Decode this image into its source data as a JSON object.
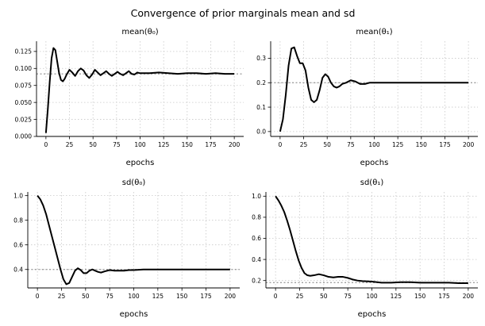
{
  "figure": {
    "title": "Convergence of prior marginals mean and sd"
  },
  "chart_data": [
    {
      "type": "line",
      "title": "mean(θ₀)",
      "xlabel": "epochs",
      "ylabel": "",
      "xlim": [
        -10,
        210
      ],
      "ylim": [
        0,
        0.14
      ],
      "xticks": [
        0,
        25,
        50,
        75,
        100,
        125,
        150,
        175,
        200
      ],
      "yticks": [
        0,
        0.025,
        0.05,
        0.075,
        0.1,
        0.125
      ],
      "ytick_labels": [
        "0.000",
        "0.025",
        "0.050",
        "0.075",
        "0.100",
        "0.125"
      ],
      "reference_line": 0.092,
      "grid": true,
      "legend": "none",
      "x": [
        0,
        2,
        4,
        6,
        8,
        10,
        12,
        14,
        16,
        18,
        20,
        22,
        25,
        28,
        31,
        34,
        37,
        40,
        43,
        46,
        49,
        52,
        55,
        58,
        61,
        64,
        67,
        70,
        73,
        76,
        79,
        82,
        85,
        88,
        91,
        94,
        97,
        100,
        110,
        120,
        130,
        140,
        150,
        160,
        170,
        180,
        190,
        200
      ],
      "y": [
        0.005,
        0.04,
        0.08,
        0.115,
        0.13,
        0.127,
        0.11,
        0.093,
        0.083,
        0.081,
        0.085,
        0.091,
        0.098,
        0.094,
        0.089,
        0.096,
        0.1,
        0.097,
        0.09,
        0.086,
        0.091,
        0.098,
        0.094,
        0.09,
        0.093,
        0.096,
        0.092,
        0.089,
        0.092,
        0.095,
        0.092,
        0.09,
        0.093,
        0.096,
        0.092,
        0.091,
        0.094,
        0.093,
        0.093,
        0.094,
        0.093,
        0.092,
        0.093,
        0.093,
        0.092,
        0.093,
        0.092,
        0.092
      ]
    },
    {
      "type": "line",
      "title": "mean(θ₁)",
      "xlabel": "epochs",
      "ylabel": "",
      "xlim": [
        -10,
        210
      ],
      "ylim": [
        -0.02,
        0.37
      ],
      "xticks": [
        0,
        25,
        50,
        75,
        100,
        125,
        150,
        175,
        200
      ],
      "yticks": [
        0,
        0.1,
        0.2,
        0.3
      ],
      "ytick_labels": [
        "0.0",
        "0.1",
        "0.2",
        "0.3"
      ],
      "reference_line": 0.2,
      "grid": true,
      "legend": "none",
      "x": [
        0,
        3,
        6,
        9,
        12,
        15,
        18,
        21,
        24,
        27,
        30,
        33,
        36,
        39,
        42,
        45,
        48,
        51,
        54,
        57,
        60,
        63,
        66,
        70,
        75,
        80,
        85,
        90,
        95,
        100,
        110,
        120,
        130,
        140,
        150,
        160,
        170,
        180,
        190,
        200
      ],
      "y": [
        0.0,
        0.05,
        0.15,
        0.27,
        0.34,
        0.345,
        0.31,
        0.28,
        0.28,
        0.25,
        0.18,
        0.13,
        0.12,
        0.13,
        0.17,
        0.22,
        0.235,
        0.225,
        0.2,
        0.185,
        0.18,
        0.185,
        0.195,
        0.2,
        0.21,
        0.205,
        0.195,
        0.195,
        0.2,
        0.2,
        0.2,
        0.2,
        0.2,
        0.2,
        0.2,
        0.2,
        0.2,
        0.2,
        0.2,
        0.2
      ]
    },
    {
      "type": "line",
      "title": "sd(θ₀)",
      "xlabel": "epochs",
      "ylabel": "",
      "xlim": [
        -10,
        210
      ],
      "ylim": [
        0.25,
        1.03
      ],
      "xticks": [
        0,
        25,
        50,
        75,
        100,
        125,
        150,
        175,
        200
      ],
      "yticks": [
        0.4,
        0.6,
        0.8,
        1.0
      ],
      "ytick_labels": [
        "0.4",
        "0.6",
        "0.8",
        "1.0"
      ],
      "reference_line": 0.4,
      "grid": true,
      "legend": "none",
      "x": [
        0,
        3,
        6,
        9,
        12,
        15,
        18,
        21,
        24,
        27,
        30,
        33,
        36,
        39,
        42,
        45,
        48,
        51,
        54,
        57,
        60,
        63,
        66,
        70,
        75,
        80,
        85,
        90,
        95,
        100,
        110,
        120,
        130,
        140,
        150,
        160,
        170,
        180,
        190,
        200
      ],
      "y": [
        1.0,
        0.97,
        0.92,
        0.85,
        0.76,
        0.67,
        0.58,
        0.49,
        0.4,
        0.32,
        0.28,
        0.29,
        0.34,
        0.39,
        0.41,
        0.395,
        0.37,
        0.37,
        0.39,
        0.4,
        0.39,
        0.38,
        0.375,
        0.385,
        0.395,
        0.39,
        0.39,
        0.39,
        0.395,
        0.395,
        0.4,
        0.4,
        0.4,
        0.4,
        0.4,
        0.4,
        0.4,
        0.4,
        0.4,
        0.4
      ]
    },
    {
      "type": "line",
      "title": "sd(θ₁)",
      "xlabel": "epochs",
      "ylabel": "",
      "xlim": [
        -10,
        210
      ],
      "ylim": [
        0.13,
        1.04
      ],
      "xticks": [
        0,
        25,
        50,
        75,
        100,
        125,
        150,
        175,
        200
      ],
      "yticks": [
        0.2,
        0.4,
        0.6,
        0.8,
        1.0
      ],
      "ytick_labels": [
        "0.2",
        "0.4",
        "0.6",
        "0.8",
        "1.0"
      ],
      "reference_line": 0.18,
      "grid": true,
      "legend": "none",
      "x": [
        0,
        3,
        6,
        9,
        12,
        15,
        18,
        21,
        24,
        27,
        30,
        33,
        36,
        40,
        45,
        50,
        55,
        60,
        65,
        70,
        75,
        80,
        85,
        90,
        100,
        110,
        120,
        130,
        140,
        150,
        160,
        170,
        180,
        190,
        200
      ],
      "y": [
        1.0,
        0.96,
        0.91,
        0.85,
        0.77,
        0.68,
        0.58,
        0.48,
        0.39,
        0.32,
        0.27,
        0.25,
        0.245,
        0.25,
        0.26,
        0.25,
        0.235,
        0.23,
        0.235,
        0.235,
        0.225,
        0.21,
        0.2,
        0.195,
        0.19,
        0.18,
        0.18,
        0.185,
        0.185,
        0.18,
        0.18,
        0.18,
        0.18,
        0.175,
        0.175
      ]
    }
  ]
}
